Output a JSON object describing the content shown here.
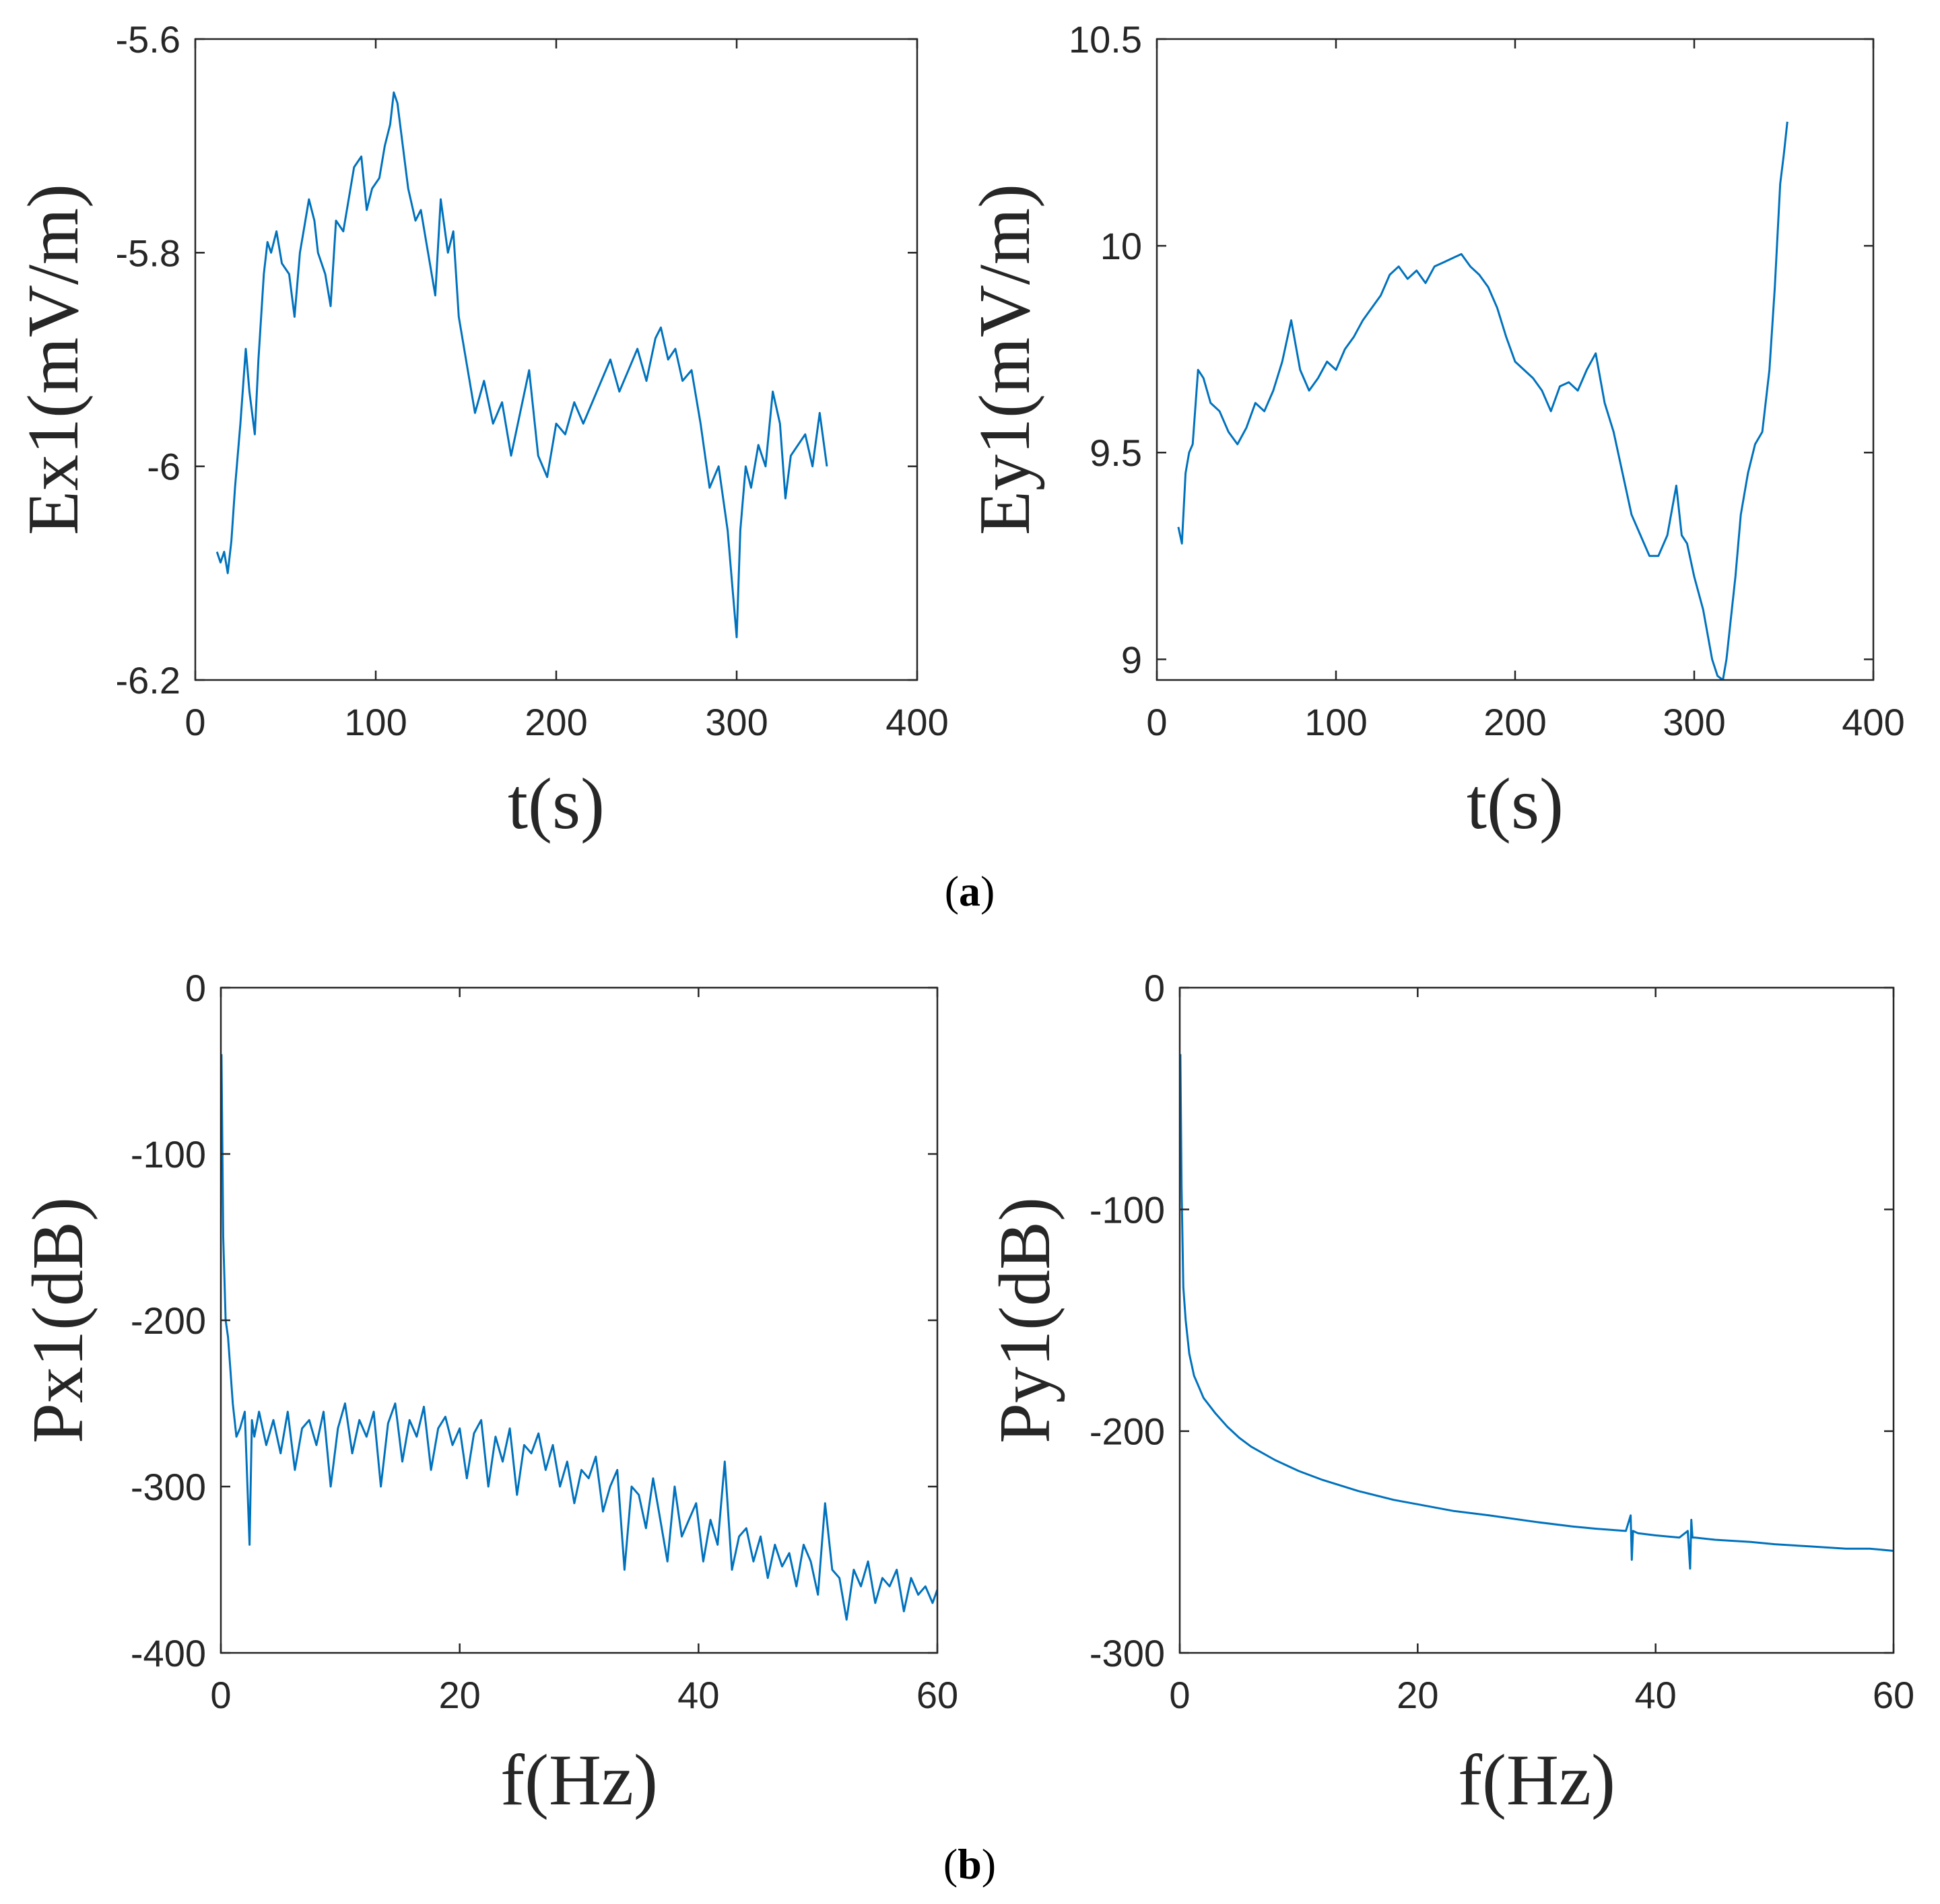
{
  "figure": {
    "panel_labels": [
      {
        "open": "(",
        "letter": "a",
        "close": ")"
      },
      {
        "open": "(",
        "letter": "b",
        "close": ")"
      }
    ]
  },
  "colors": {
    "line": "#0072BD",
    "axis": "#262626",
    "background": "#ffffff"
  },
  "chart_data": [
    {
      "type": "line",
      "id": "ex1",
      "xlabel": "t(s)",
      "ylabel": "Ex1(mV/m)",
      "xlim": [
        0,
        400
      ],
      "ylim": [
        -6.2,
        -5.6
      ],
      "xticks": [
        0,
        100,
        200,
        300,
        400
      ],
      "yticks": [
        -6.2,
        -6,
        -5.8,
        -5.6
      ],
      "xtick_labels": [
        "0",
        "100",
        "200",
        "300",
        "400"
      ],
      "ytick_labels": [
        "-6.2",
        "-6",
        "-5.8",
        "-5.6"
      ],
      "grid": false,
      "series": [
        {
          "name": "Ex1",
          "x": [
            12,
            14,
            16,
            18,
            20,
            22,
            25,
            28,
            30,
            33,
            35,
            38,
            40,
            42,
            45,
            48,
            52,
            55,
            58,
            60,
            63,
            66,
            68,
            72,
            75,
            78,
            82,
            85,
            88,
            92,
            95,
            98,
            102,
            105,
            108,
            110,
            112,
            115,
            118,
            122,
            125,
            128,
            130,
            133,
            136,
            140,
            143,
            146,
            150,
            155,
            160,
            165,
            170,
            175,
            180,
            185,
            190,
            195,
            200,
            205,
            210,
            215,
            220,
            225,
            230,
            235,
            240,
            245,
            250,
            255,
            258,
            262,
            266,
            270,
            275,
            280,
            285,
            290,
            295,
            298,
            300,
            302,
            305,
            308,
            312,
            316,
            320,
            324,
            327,
            330,
            334,
            338,
            342,
            346,
            350
          ],
          "values": [
            -6.08,
            -6.09,
            -6.08,
            -6.1,
            -6.07,
            -6.02,
            -5.96,
            -5.89,
            -5.93,
            -5.97,
            -5.9,
            -5.82,
            -5.79,
            -5.8,
            -5.78,
            -5.81,
            -5.82,
            -5.86,
            -5.8,
            -5.78,
            -5.75,
            -5.77,
            -5.8,
            -5.82,
            -5.85,
            -5.77,
            -5.78,
            -5.75,
            -5.72,
            -5.71,
            -5.76,
            -5.74,
            -5.73,
            -5.7,
            -5.68,
            -5.65,
            -5.66,
            -5.7,
            -5.74,
            -5.77,
            -5.76,
            -5.79,
            -5.81,
            -5.84,
            -5.75,
            -5.8,
            -5.78,
            -5.86,
            -5.9,
            -5.95,
            -5.92,
            -5.96,
            -5.94,
            -5.99,
            -5.95,
            -5.91,
            -5.99,
            -6.01,
            -5.96,
            -5.97,
            -5.94,
            -5.96,
            -5.94,
            -5.92,
            -5.9,
            -5.93,
            -5.91,
            -5.89,
            -5.92,
            -5.88,
            -5.87,
            -5.9,
            -5.89,
            -5.92,
            -5.91,
            -5.96,
            -6.02,
            -6.0,
            -6.06,
            -6.12,
            -6.16,
            -6.06,
            -6.0,
            -6.02,
            -5.98,
            -6.0,
            -5.93,
            -5.96,
            -6.03,
            -5.99,
            -5.98,
            -5.97,
            -6.0,
            -5.95,
            -6.0
          ]
        }
      ]
    },
    {
      "type": "line",
      "id": "ey1",
      "xlabel": "t(s)",
      "ylabel": "Ey1(mV/m)",
      "xlim": [
        0,
        400
      ],
      "ylim": [
        8.95,
        10.5
      ],
      "xticks": [
        0,
        100,
        200,
        300,
        400
      ],
      "yticks": [
        9,
        9.5,
        10,
        10.5
      ],
      "xtick_labels": [
        "0",
        "100",
        "200",
        "300",
        "400"
      ],
      "ytick_labels": [
        "9",
        "9.5",
        "10",
        "10.5"
      ],
      "grid": false,
      "series": [
        {
          "name": "Ey1",
          "x": [
            12,
            14,
            16,
            18,
            20,
            23,
            26,
            30,
            35,
            40,
            45,
            50,
            55,
            60,
            65,
            70,
            75,
            80,
            85,
            90,
            95,
            100,
            105,
            110,
            115,
            120,
            125,
            130,
            135,
            140,
            145,
            150,
            155,
            160,
            165,
            170,
            175,
            180,
            185,
            190,
            195,
            200,
            205,
            210,
            215,
            220,
            225,
            230,
            235,
            240,
            245,
            250,
            255,
            260,
            265,
            270,
            275,
            280,
            285,
            290,
            293,
            296,
            300,
            305,
            310,
            313,
            316,
            318,
            320,
            323,
            326,
            330,
            334,
            338,
            342,
            345,
            348,
            350,
            352
          ],
          "values": [
            9.32,
            9.28,
            9.45,
            9.5,
            9.52,
            9.7,
            9.68,
            9.62,
            9.6,
            9.55,
            9.52,
            9.56,
            9.62,
            9.6,
            9.65,
            9.72,
            9.82,
            9.7,
            9.65,
            9.68,
            9.72,
            9.7,
            9.75,
            9.78,
            9.82,
            9.85,
            9.88,
            9.93,
            9.95,
            9.92,
            9.94,
            9.91,
            9.95,
            9.96,
            9.97,
            9.98,
            9.95,
            9.93,
            9.9,
            9.85,
            9.78,
            9.72,
            9.7,
            9.68,
            9.65,
            9.6,
            9.66,
            9.67,
            9.65,
            9.7,
            9.74,
            9.62,
            9.55,
            9.45,
            9.35,
            9.3,
            9.25,
            9.25,
            9.3,
            9.42,
            9.3,
            9.28,
            9.2,
            9.12,
            9.0,
            8.96,
            8.95,
            9.0,
            9.08,
            9.2,
            9.35,
            9.45,
            9.52,
            9.55,
            9.7,
            9.9,
            10.15,
            10.22,
            10.3
          ]
        }
      ]
    },
    {
      "type": "line",
      "id": "px1",
      "xlabel": "f(Hz)",
      "ylabel": "Px1(dB)",
      "xlim": [
        0,
        60
      ],
      "ylim": [
        -400,
        0
      ],
      "xticks": [
        0,
        20,
        40,
        60
      ],
      "yticks": [
        -400,
        -300,
        -200,
        -100,
        0
      ],
      "xtick_labels": [
        "0",
        "20",
        "40",
        "60"
      ],
      "ytick_labels": [
        "-400",
        "-300",
        "-200",
        "-100",
        "0"
      ],
      "grid": false,
      "series": [
        {
          "name": "Px1",
          "x": [
            0.05,
            0.2,
            0.4,
            0.6,
            0.8,
            1.0,
            1.3,
            1.6,
            2.0,
            2.4,
            2.6,
            2.8,
            3.2,
            3.8,
            4.4,
            5.0,
            5.6,
            6.2,
            6.8,
            7.4,
            8.0,
            8.6,
            9.2,
            9.8,
            10.4,
            11.0,
            11.6,
            12.2,
            12.8,
            13.4,
            14.0,
            14.6,
            15.2,
            15.8,
            16.4,
            17.0,
            17.6,
            18.2,
            18.8,
            19.4,
            20.0,
            20.6,
            21.2,
            21.8,
            22.4,
            23.0,
            23.6,
            24.2,
            24.8,
            25.4,
            26.0,
            26.6,
            27.2,
            27.8,
            28.4,
            29.0,
            29.6,
            30.2,
            30.8,
            31.4,
            32.0,
            32.6,
            33.2,
            33.8,
            34.4,
            35.0,
            35.6,
            36.2,
            36.8,
            37.4,
            38.0,
            38.6,
            39.2,
            39.8,
            40.4,
            41.0,
            41.6,
            42.2,
            42.8,
            43.4,
            44.0,
            44.6,
            45.2,
            45.8,
            46.4,
            47.0,
            47.6,
            48.2,
            48.8,
            49.4,
            50.0,
            50.6,
            51.2,
            51.8,
            52.4,
            53.0,
            53.6,
            54.2,
            54.8,
            55.4,
            56.0,
            56.6,
            57.2,
            57.8,
            58.4,
            59.0,
            59.6,
            60.0
          ],
          "values": [
            -40,
            -150,
            -200,
            -210,
            -230,
            -250,
            -270,
            -265,
            -255,
            -335,
            -260,
            -270,
            -255,
            -275,
            -260,
            -280,
            -255,
            -290,
            -265,
            -260,
            -275,
            -255,
            -300,
            -265,
            -250,
            -280,
            -260,
            -270,
            -255,
            -300,
            -262,
            -250,
            -285,
            -260,
            -270,
            -252,
            -290,
            -265,
            -258,
            -275,
            -265,
            -295,
            -268,
            -260,
            -300,
            -270,
            -285,
            -265,
            -305,
            -275,
            -280,
            -268,
            -290,
            -275,
            -300,
            -285,
            -310,
            -290,
            -295,
            -282,
            -315,
            -300,
            -290,
            -350,
            -300,
            -305,
            -325,
            -295,
            -320,
            -345,
            -300,
            -330,
            -320,
            -310,
            -345,
            -320,
            -335,
            -285,
            -350,
            -330,
            -325,
            -345,
            -330,
            -355,
            -335,
            -348,
            -340,
            -360,
            -335,
            -345,
            -365,
            -310,
            -350,
            -355,
            -380,
            -350,
            -360,
            -345,
            -370,
            -355,
            -360,
            -350,
            -375,
            -355,
            -365,
            -360,
            -370,
            -362
          ]
        }
      ]
    },
    {
      "type": "line",
      "id": "py1",
      "xlabel": "f(Hz)",
      "ylabel": "Py1(dB)",
      "xlim": [
        0,
        60
      ],
      "ylim": [
        -300,
        0
      ],
      "xticks": [
        0,
        20,
        40,
        60
      ],
      "yticks": [
        -300,
        -200,
        -100,
        0
      ],
      "xtick_labels": [
        "0",
        "20",
        "40",
        "60"
      ],
      "ytick_labels": [
        "-300",
        "-200",
        "-100",
        "0"
      ],
      "grid": false,
      "series": [
        {
          "name": "Py1",
          "x": [
            0.05,
            0.15,
            0.3,
            0.5,
            0.8,
            1.2,
            1.6,
            2.0,
            3.0,
            4.0,
            5.0,
            6.0,
            8.0,
            10.0,
            12.0,
            15.0,
            18.0,
            20.0,
            23.0,
            26.0,
            30.0,
            33.0,
            35.0,
            37.5,
            37.9,
            38.0,
            38.1,
            38.5,
            40.0,
            42.0,
            42.7,
            42.9,
            43.0,
            43.1,
            43.3,
            45.0,
            48.0,
            50.0,
            53.0,
            56.0,
            58.0,
            60.0
          ],
          "values": [
            -30,
            -90,
            -135,
            -150,
            -165,
            -175,
            -180,
            -185,
            -192,
            -198,
            -203,
            -207,
            -213,
            -218,
            -222,
            -227,
            -231,
            -233,
            -236,
            -238,
            -241,
            -243,
            -244,
            -245,
            -238,
            -258,
            -245,
            -246,
            -247,
            -248,
            -245,
            -262,
            -240,
            -248,
            -248,
            -249,
            -250,
            -251,
            -252,
            -253,
            -253,
            -254
          ]
        }
      ]
    }
  ]
}
